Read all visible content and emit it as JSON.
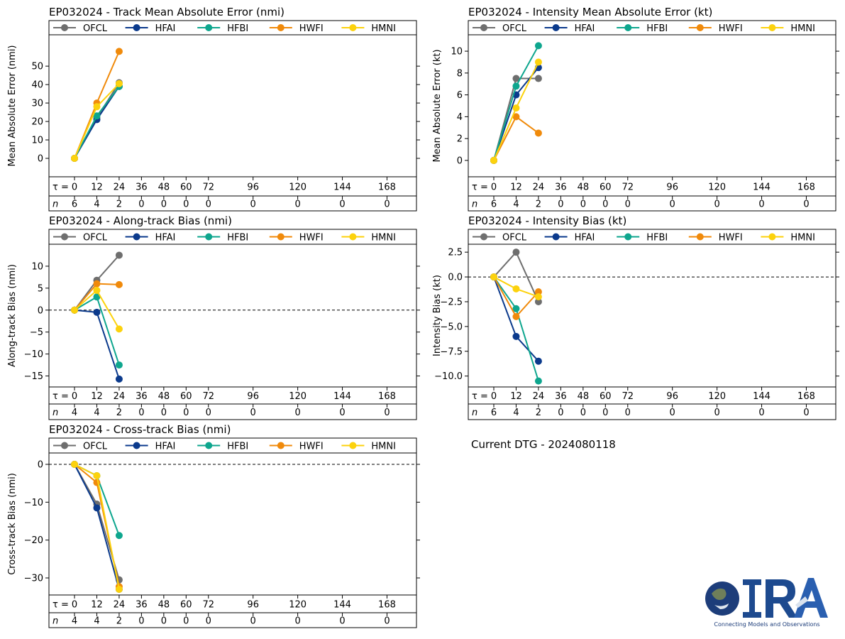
{
  "series_colors": {
    "OFCL": "#6e6e6e",
    "HFAI": "#0b3a8c",
    "HFBI": "#0ea68e",
    "HWFI": "#f08a0b",
    "HMNI": "#fcd20d"
  },
  "legend_labels": [
    "OFCL",
    "HFAI",
    "HFBI",
    "HWFI",
    "HMNI"
  ],
  "tau_prefix": "τ = ",
  "n_label": "n",
  "current_dtg": "Current DTG - 2024080118",
  "logo": {
    "name": "CIRA",
    "tagline": "Connecting Models and Observations"
  },
  "chart_data": [
    {
      "id": "track-mae",
      "type": "line",
      "title": "EP032024 - Track Mean Absolute Error (nmi)",
      "ylabel": "Mean Absolute Error (nmi)",
      "ylim": [
        -10,
        67
      ],
      "yticks": [
        0,
        10,
        20,
        30,
        40,
        50
      ],
      "ytick_labels": [
        "0",
        "10",
        "20",
        "30",
        "40",
        "50"
      ],
      "zero_line": false,
      "x": [
        0,
        12,
        24,
        36,
        48,
        60,
        72,
        96,
        120,
        144,
        168
      ],
      "x_labels": [
        "0",
        "12",
        "24",
        "36",
        "48",
        "60",
        "72",
        "96",
        "120",
        "144",
        "168"
      ],
      "n": [
        "6",
        "4",
        "2",
        "0",
        "0",
        "0",
        "0",
        "0",
        "0",
        "0",
        "0"
      ],
      "series": [
        {
          "name": "OFCL",
          "x": [
            0,
            12,
            24
          ],
          "values": [
            0,
            22,
            41
          ]
        },
        {
          "name": "HFAI",
          "x": [
            0,
            12,
            24
          ],
          "values": [
            0,
            21,
            39
          ]
        },
        {
          "name": "HFBI",
          "x": [
            0,
            12,
            24
          ],
          "values": [
            0,
            23,
            39
          ]
        },
        {
          "name": "HWFI",
          "x": [
            0,
            12,
            24
          ],
          "values": [
            0,
            30,
            58
          ]
        },
        {
          "name": "HMNI",
          "x": [
            0,
            12,
            24
          ],
          "values": [
            0,
            28,
            40.5
          ]
        }
      ]
    },
    {
      "id": "intensity-mae",
      "type": "line",
      "title": "EP032024 - Intensity Mean Absolute Error (kt)",
      "ylabel": "Mean Absolute Error (kt)",
      "ylim": [
        -1.5,
        11.5
      ],
      "yticks": [
        0,
        2,
        4,
        6,
        8,
        10
      ],
      "ytick_labels": [
        "0",
        "2",
        "4",
        "6",
        "8",
        "10"
      ],
      "zero_line": false,
      "x": [
        0,
        12,
        24,
        36,
        48,
        60,
        72,
        96,
        120,
        144,
        168
      ],
      "x_labels": [
        "0",
        "12",
        "24",
        "36",
        "48",
        "60",
        "72",
        "96",
        "120",
        "144",
        "168"
      ],
      "n": [
        "6",
        "4",
        "2",
        "0",
        "0",
        "0",
        "0",
        "0",
        "0",
        "0",
        "0"
      ],
      "series": [
        {
          "name": "OFCL",
          "x": [
            0,
            12,
            24
          ],
          "values": [
            0,
            7.5,
            7.5
          ]
        },
        {
          "name": "HFAI",
          "x": [
            0,
            12,
            24
          ],
          "values": [
            0,
            6,
            8.5
          ]
        },
        {
          "name": "HFBI",
          "x": [
            0,
            12,
            24
          ],
          "values": [
            0,
            6.8,
            10.5
          ]
        },
        {
          "name": "HWFI",
          "x": [
            0,
            12,
            24
          ],
          "values": [
            0,
            4,
            2.5
          ]
        },
        {
          "name": "HMNI",
          "x": [
            0,
            12,
            24
          ],
          "values": [
            0,
            4.8,
            9
          ]
        }
      ]
    },
    {
      "id": "along-track-bias",
      "type": "line",
      "title": "EP032024 - Along-track Bias (nmi)",
      "ylabel": "Along-track Bias (nmi)",
      "ylim": [
        -17.5,
        15
      ],
      "yticks": [
        -15,
        -10,
        -5,
        0,
        5,
        10
      ],
      "ytick_labels": [
        "−15",
        "−10",
        "−5",
        "0",
        "5",
        "10"
      ],
      "zero_line": true,
      "x": [
        0,
        12,
        24,
        36,
        48,
        60,
        72,
        96,
        120,
        144,
        168
      ],
      "x_labels": [
        "0",
        "12",
        "24",
        "36",
        "48",
        "60",
        "72",
        "96",
        "120",
        "144",
        "168"
      ],
      "n": [
        "4",
        "4",
        "2",
        "0",
        "0",
        "0",
        "0",
        "0",
        "0",
        "0",
        "0"
      ],
      "series": [
        {
          "name": "OFCL",
          "x": [
            0,
            12,
            24
          ],
          "values": [
            0,
            6.8,
            12.5
          ]
        },
        {
          "name": "HFAI",
          "x": [
            0,
            12,
            24
          ],
          "values": [
            0,
            -0.5,
            -15.7
          ]
        },
        {
          "name": "HFBI",
          "x": [
            0,
            12,
            24
          ],
          "values": [
            0,
            3,
            -12.5
          ]
        },
        {
          "name": "HWFI",
          "x": [
            0,
            12,
            24
          ],
          "values": [
            0,
            6,
            5.8
          ]
        },
        {
          "name": "HMNI",
          "x": [
            0,
            12,
            24
          ],
          "values": [
            0,
            4.5,
            -4.3
          ]
        }
      ]
    },
    {
      "id": "intensity-bias",
      "type": "line",
      "title": "EP032024 - Intensity Bias (kt)",
      "ylabel": "Intensity Bias (kt)",
      "ylim": [
        -11.1,
        3.3
      ],
      "yticks": [
        -10,
        -7.5,
        -5,
        -2.5,
        0,
        2.5
      ],
      "ytick_labels": [
        "−10.0",
        "−7.5",
        "−5.0",
        "−2.5",
        "0.0",
        "2.5"
      ],
      "zero_line": true,
      "x": [
        0,
        12,
        24,
        36,
        48,
        60,
        72,
        96,
        120,
        144,
        168
      ],
      "x_labels": [
        "0",
        "12",
        "24",
        "36",
        "48",
        "60",
        "72",
        "96",
        "120",
        "144",
        "168"
      ],
      "n": [
        "6",
        "4",
        "2",
        "0",
        "0",
        "0",
        "0",
        "0",
        "0",
        "0",
        "0"
      ],
      "series": [
        {
          "name": "OFCL",
          "x": [
            0,
            12,
            24
          ],
          "values": [
            0,
            2.5,
            -2.5
          ]
        },
        {
          "name": "HFAI",
          "x": [
            0,
            12,
            24
          ],
          "values": [
            0,
            -6,
            -8.5
          ]
        },
        {
          "name": "HFBI",
          "x": [
            0,
            12,
            24
          ],
          "values": [
            0,
            -3.2,
            -10.5
          ]
        },
        {
          "name": "HWFI",
          "x": [
            0,
            12,
            24
          ],
          "values": [
            0,
            -4,
            -1.5
          ]
        },
        {
          "name": "HMNI",
          "x": [
            0,
            12,
            24
          ],
          "values": [
            0,
            -1.2,
            -2
          ]
        }
      ]
    },
    {
      "id": "cross-track-bias",
      "type": "line",
      "title": "EP032024 - Cross-track Bias (nmi)",
      "ylabel": "Cross-track Bias (nmi)",
      "ylim": [
        -34.5,
        3
      ],
      "yticks": [
        -30,
        -20,
        -10,
        0
      ],
      "ytick_labels": [
        "−30",
        "−20",
        "−10",
        "0"
      ],
      "zero_line": true,
      "x": [
        0,
        12,
        24,
        36,
        48,
        60,
        72,
        96,
        120,
        144,
        168
      ],
      "x_labels": [
        "0",
        "12",
        "24",
        "36",
        "48",
        "60",
        "72",
        "96",
        "120",
        "144",
        "168"
      ],
      "n": [
        "4",
        "4",
        "2",
        "0",
        "0",
        "0",
        "0",
        "0",
        "0",
        "0",
        "0"
      ],
      "series": [
        {
          "name": "OFCL",
          "x": [
            0,
            12,
            24
          ],
          "values": [
            0,
            -10.5,
            -30.5
          ]
        },
        {
          "name": "HFAI",
          "x": [
            0,
            12,
            24
          ],
          "values": [
            0,
            -11.5,
            -33
          ]
        },
        {
          "name": "HFBI",
          "x": [
            0,
            12,
            24
          ],
          "values": [
            0,
            -3,
            -18.8
          ]
        },
        {
          "name": "HWFI",
          "x": [
            0,
            12,
            24
          ],
          "values": [
            0,
            -4.8,
            -32.3
          ]
        },
        {
          "name": "HMNI",
          "x": [
            0,
            12,
            24
          ],
          "values": [
            0,
            -3,
            -33
          ]
        }
      ]
    }
  ]
}
